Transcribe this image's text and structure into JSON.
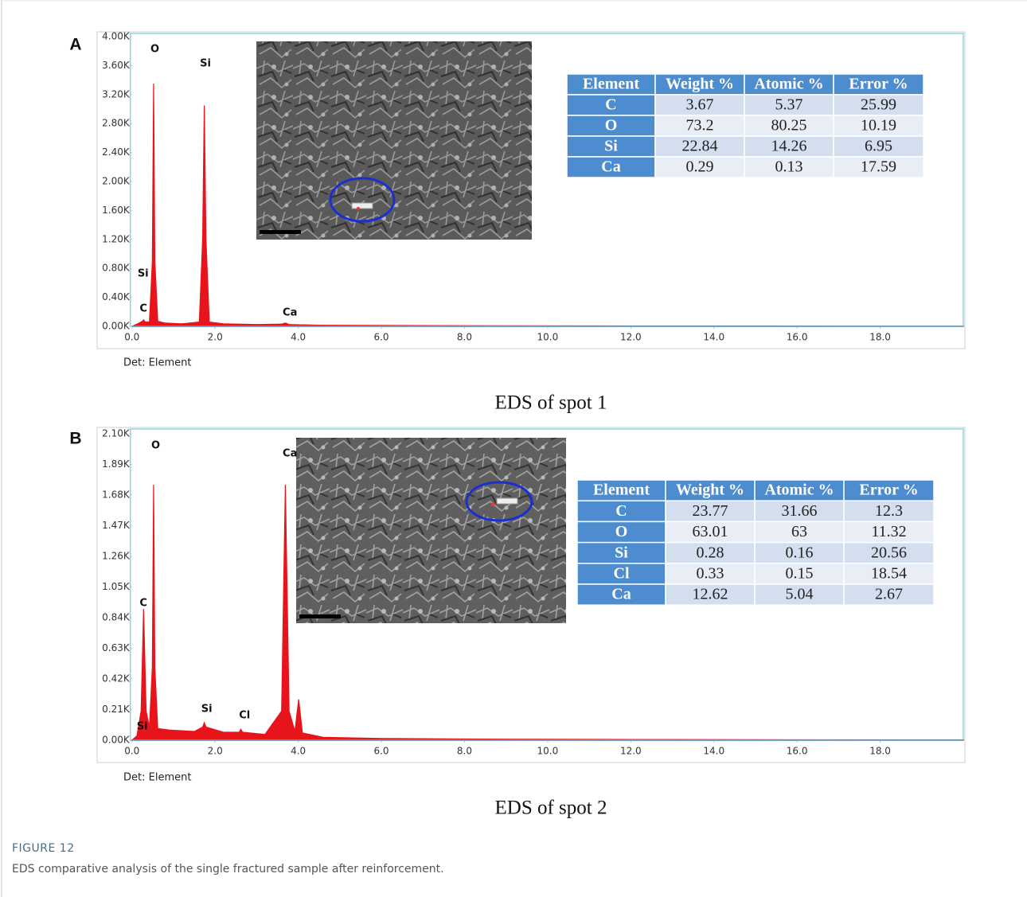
{
  "figure_label": "FIGURE 12",
  "caption": "EDS comparative analysis of the single fractured sample after reinforcement.",
  "chart_data": [
    {
      "type": "area",
      "panel_label": "A",
      "note": "Det: Element",
      "caption": "EDS of spot 1",
      "xlim": [
        -0.8,
        20
      ],
      "ylim": [
        0,
        4000
      ],
      "xticks": [
        {
          "value": 0,
          "label": "0.0"
        },
        {
          "value": 2,
          "label": "2.0"
        },
        {
          "value": 4,
          "label": "4.0"
        },
        {
          "value": 6,
          "label": "6.0"
        },
        {
          "value": 8,
          "label": "8.0"
        },
        {
          "value": 10,
          "label": "10.0"
        },
        {
          "value": 12,
          "label": "12.0"
        },
        {
          "value": 14,
          "label": "14.0"
        },
        {
          "value": 16,
          "label": "16.0"
        },
        {
          "value": 18,
          "label": "18.0"
        }
      ],
      "yticks": [
        {
          "value": 0,
          "label": "0.00K"
        },
        {
          "value": 400,
          "label": "0.40K"
        },
        {
          "value": 800,
          "label": "0.80K"
        },
        {
          "value": 1200,
          "label": "1.20K"
        },
        {
          "value": 1600,
          "label": "1.60K"
        },
        {
          "value": 2000,
          "label": "2.00K"
        },
        {
          "value": 2400,
          "label": "2.40K"
        },
        {
          "value": 2800,
          "label": "2.80K"
        },
        {
          "value": 3200,
          "label": "3.20K"
        },
        {
          "value": 3600,
          "label": "3.60K"
        },
        {
          "value": 4000,
          "label": "4.00K"
        }
      ],
      "series": [
        {
          "color": "#e8141c",
          "x": [
            0,
            0.15,
            0.25,
            0.28,
            0.32,
            0.42,
            0.49,
            0.52,
            0.55,
            0.62,
            0.8,
            1.2,
            1.62,
            1.7,
            1.74,
            1.78,
            1.86,
            2.2,
            3.0,
            3.6,
            3.69,
            3.78,
            4.5,
            8,
            12,
            16,
            20
          ],
          "values": [
            0,
            40,
            70,
            90,
            60,
            60,
            900,
            3350,
            900,
            70,
            45,
            35,
            60,
            1200,
            3050,
            1200,
            60,
            35,
            25,
            30,
            45,
            25,
            15,
            8,
            5,
            3,
            2
          ]
        }
      ],
      "annotations": [
        {
          "text": "O",
          "x": 0.56,
          "y": 3824
        },
        {
          "text": "Si",
          "x": 1.75,
          "y": 3626
        },
        {
          "text": "Si",
          "x": 0.25,
          "y": 725
        },
        {
          "text": "C",
          "x": 0.3,
          "y": 242
        },
        {
          "text": "Ca",
          "x": 3.74,
          "y": 187
        }
      ]
    },
    {
      "type": "area",
      "panel_label": "B",
      "note": "Det: Element",
      "caption": "EDS of spot 2",
      "xlim": [
        -0.8,
        20
      ],
      "ylim": [
        0,
        2100
      ],
      "xticks": [
        {
          "value": 0,
          "label": "0.0"
        },
        {
          "value": 2,
          "label": "2.0"
        },
        {
          "value": 4,
          "label": "4.0"
        },
        {
          "value": 6,
          "label": "6.0"
        },
        {
          "value": 8,
          "label": "8.0"
        },
        {
          "value": 10,
          "label": "10.0"
        },
        {
          "value": 12,
          "label": "12.0"
        },
        {
          "value": 14,
          "label": "14.0"
        },
        {
          "value": 16,
          "label": "16.0"
        },
        {
          "value": 18,
          "label": "18.0"
        }
      ],
      "yticks": [
        {
          "value": 0,
          "label": "0.00K"
        },
        {
          "value": 210,
          "label": "0.21K"
        },
        {
          "value": 420,
          "label": "0.42K"
        },
        {
          "value": 630,
          "label": "0.63K"
        },
        {
          "value": 840,
          "label": "0.84K"
        },
        {
          "value": 1050,
          "label": "1.05K"
        },
        {
          "value": 1260,
          "label": "1.26K"
        },
        {
          "value": 1470,
          "label": "1.47K"
        },
        {
          "value": 1680,
          "label": "1.68K"
        },
        {
          "value": 1890,
          "label": "1.89K"
        },
        {
          "value": 2100,
          "label": "2.10K"
        }
      ],
      "series": [
        {
          "color": "#e8141c",
          "x": [
            0,
            0.12,
            0.22,
            0.28,
            0.34,
            0.42,
            0.49,
            0.52,
            0.55,
            0.62,
            0.9,
            1.5,
            1.7,
            1.74,
            1.78,
            2.2,
            2.58,
            2.62,
            2.66,
            3.2,
            3.6,
            3.69,
            3.78,
            3.92,
            4.01,
            4.1,
            4.6,
            6,
            8,
            12,
            16,
            20
          ],
          "values": [
            0,
            30,
            200,
            900,
            200,
            90,
            500,
            1750,
            500,
            80,
            70,
            60,
            90,
            120,
            90,
            55,
            55,
            75,
            55,
            40,
            200,
            1750,
            200,
            60,
            280,
            50,
            20,
            12,
            8,
            5,
            3,
            2
          ]
        }
      ],
      "annotations": [
        {
          "text": "O",
          "x": 0.58,
          "y": 2018
        },
        {
          "text": "Ca",
          "x": 3.74,
          "y": 1963
        },
        {
          "text": "C",
          "x": 0.3,
          "y": 938
        },
        {
          "text": "Si",
          "x": 1.78,
          "y": 213
        },
        {
          "text": "Cl",
          "x": 2.69,
          "y": 169
        },
        {
          "text": "Si",
          "x": 0.23,
          "y": 93
        }
      ]
    }
  ],
  "tables": [
    {
      "header": [
        "Element",
        "Weight %",
        "Atomic %",
        "Error %"
      ],
      "rows": [
        [
          "C",
          3.67,
          5.37,
          25.99
        ],
        [
          "O",
          73.2,
          80.25,
          10.19
        ],
        [
          "Si",
          22.84,
          14.26,
          6.95
        ],
        [
          "Ca",
          0.29,
          0.13,
          17.59
        ]
      ]
    },
    {
      "header": [
        "Element",
        "Weight %",
        "Atomic %",
        "Error %"
      ],
      "rows": [
        [
          "C",
          23.77,
          31.66,
          12.3
        ],
        [
          "O",
          63.01,
          63,
          11.32
        ],
        [
          "Si",
          0.28,
          0.16,
          20.56
        ],
        [
          "Cl",
          0.33,
          0.15,
          18.54
        ],
        [
          "Ca",
          12.62,
          5.04,
          2.67
        ]
      ]
    }
  ]
}
